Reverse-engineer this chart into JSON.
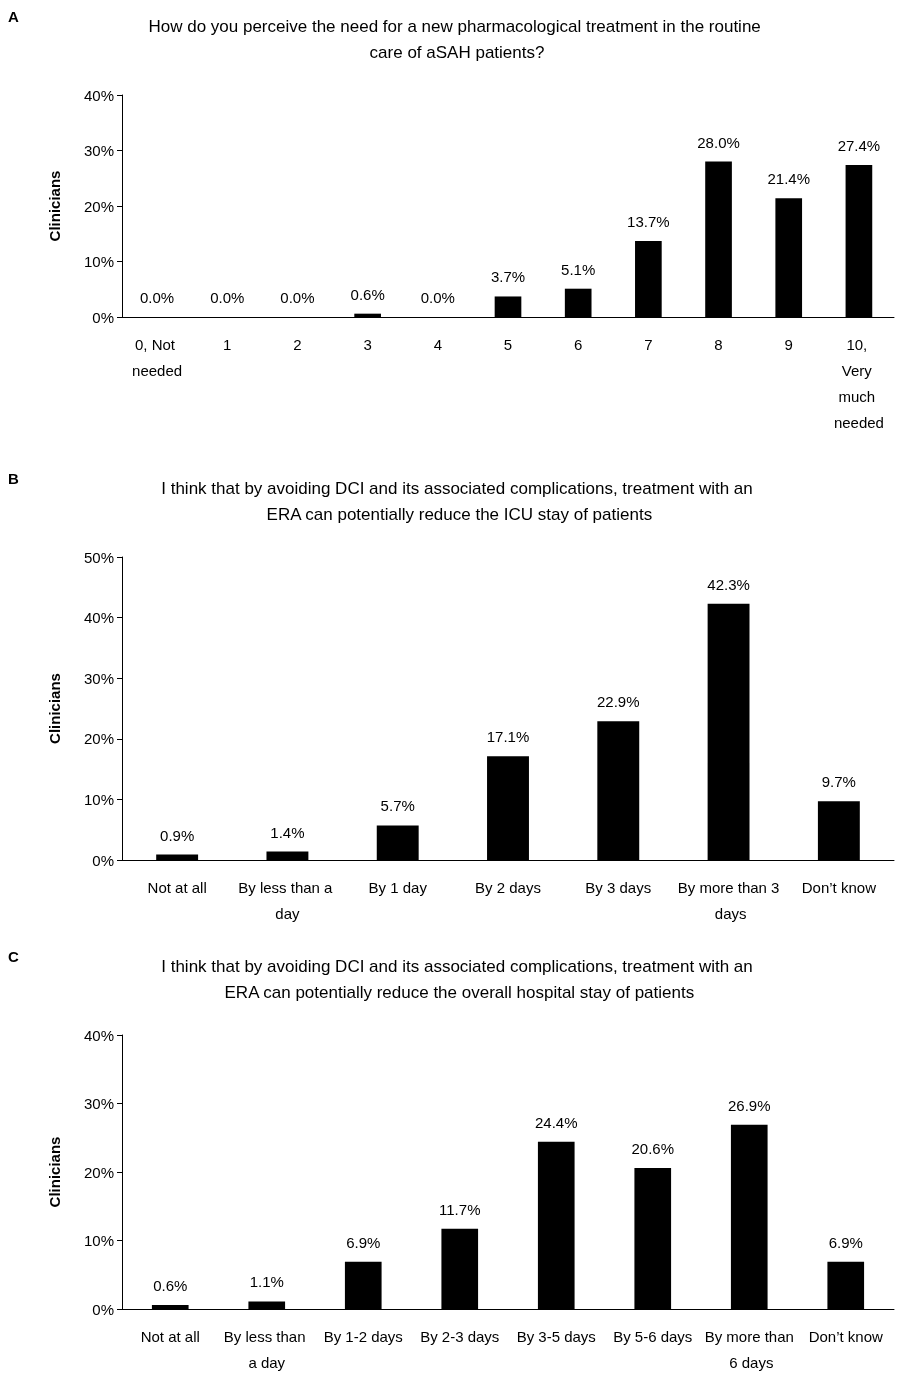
{
  "chart_data": [
    {
      "type": "bar",
      "title": "How do you perceive the need for a new pharmacological treatment in the routine care of aSAH patients?",
      "ylabel": "Clinicians",
      "annotations": [
        "A"
      ],
      "categories": [
        "0, Not needed",
        "1",
        "2",
        "3",
        "4",
        "5",
        "6",
        "7",
        "8",
        "9",
        "10, Very much needed"
      ],
      "series": [
        {
          "color": "#000000",
          "values": [
            0.0,
            0.0,
            0.0,
            0.6,
            0.0,
            3.7,
            5.1,
            13.7,
            28.0,
            21.4,
            27.4
          ],
          "value_labels": [
            "0.0%",
            "0.0%",
            "0.0%",
            "0.6%",
            "0.0%",
            "3.7%",
            "5.1%",
            "13.7%",
            "28.0%",
            "21.4%",
            "27.4%"
          ]
        }
      ],
      "ylim": [
        0,
        40
      ],
      "yticks": [
        {
          "value": 0,
          "label": "0%"
        },
        {
          "value": 10,
          "label": "10%"
        },
        {
          "value": 20,
          "label": "20%"
        },
        {
          "value": 30,
          "label": "30%"
        },
        {
          "value": 40,
          "label": "40%"
        }
      ],
      "grid": false
    },
    {
      "type": "bar",
      "title": "I think that by avoiding DCI and its associated complications, treatment with an ERA can potentially reduce the ICU stay of patients",
      "ylabel": "Clinicians",
      "annotations": [
        "B"
      ],
      "categories": [
        "Not at all",
        "By less than a day",
        "By 1 day",
        "By 2 days",
        "By 3 days",
        "By more than 3 days",
        "Don’t know"
      ],
      "series": [
        {
          "color": "#000000",
          "values": [
            0.9,
            1.4,
            5.7,
            17.1,
            22.9,
            42.3,
            9.7
          ],
          "value_labels": [
            "0.9%",
            "1.4%",
            "5.7%",
            "17.1%",
            "22.9%",
            "42.3%",
            "9.7%"
          ]
        }
      ],
      "ylim": [
        0,
        50
      ],
      "yticks": [
        {
          "value": 0,
          "label": "0%"
        },
        {
          "value": 10,
          "label": "10%"
        },
        {
          "value": 20,
          "label": "20%"
        },
        {
          "value": 30,
          "label": "30%"
        },
        {
          "value": 40,
          "label": "40%"
        },
        {
          "value": 50,
          "label": "50%"
        }
      ],
      "grid": false
    },
    {
      "type": "bar",
      "title": "I think that by avoiding DCI and its associated complications, treatment with an ERA can potentially reduce the overall hospital stay of patients",
      "ylabel": "Clinicians",
      "annotations": [
        "C"
      ],
      "categories": [
        "Not at all",
        "By less than a day",
        "By 1-2 days",
        "By 2-3 days",
        "By 3-5 days",
        "By 5-6 days",
        "By more than 6 days",
        "Don’t know"
      ],
      "series": [
        {
          "color": "#000000",
          "values": [
            0.6,
            1.1,
            6.9,
            11.7,
            24.4,
            20.6,
            26.9,
            6.9
          ],
          "value_labels": [
            "0.6%",
            "1.1%",
            "6.9%",
            "11.7%",
            "24.4%",
            "20.6%",
            "26.9%",
            "6.9%"
          ]
        }
      ],
      "ylim": [
        0,
        40
      ],
      "yticks": [
        {
          "value": 0,
          "label": "0%"
        },
        {
          "value": 10,
          "label": "10%"
        },
        {
          "value": 20,
          "label": "20%"
        },
        {
          "value": 30,
          "label": "30%"
        },
        {
          "value": 40,
          "label": "40%"
        }
      ],
      "grid": false
    }
  ]
}
